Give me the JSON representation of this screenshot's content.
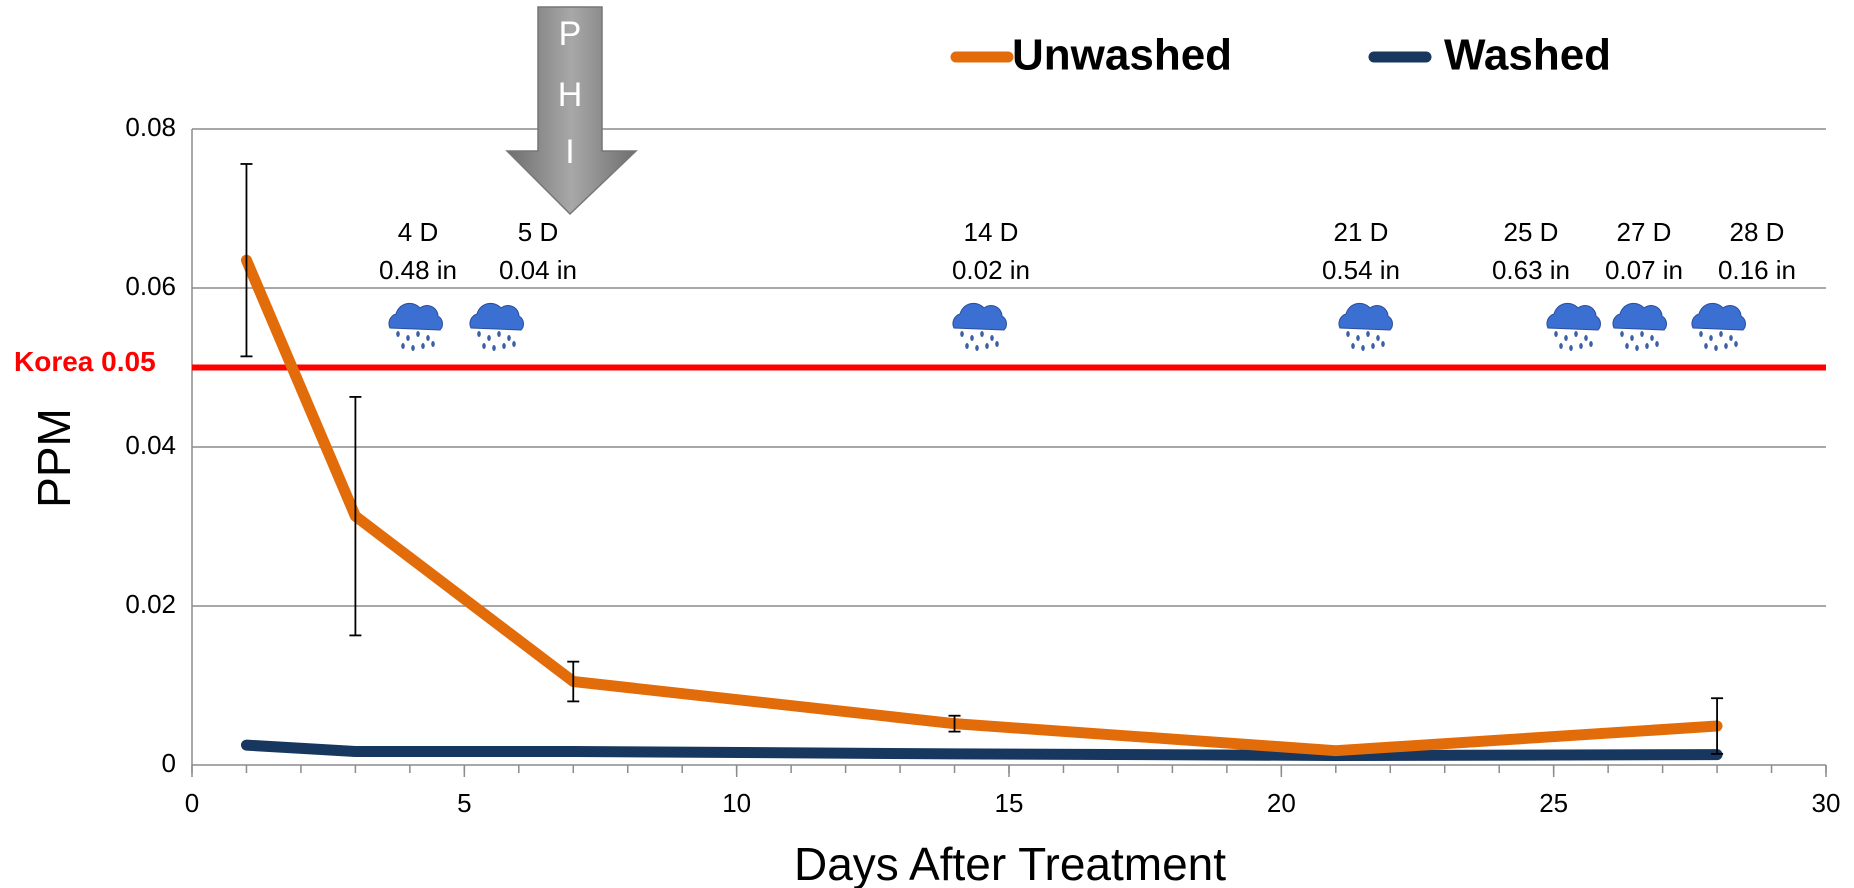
{
  "chart_data": {
    "type": "line",
    "xlabel": "Days After Treatment",
    "ylabel": "PPM",
    "x": [
      1,
      3,
      7,
      14,
      21,
      28
    ],
    "series": [
      {
        "name": "Unwashed",
        "color": "#e36c0a",
        "values": [
          0.0635,
          0.0313,
          0.0105,
          0.0052,
          0.0018,
          0.0049
        ],
        "errors": [
          0.0121,
          0.015,
          0.0025,
          0.001,
          null,
          0.0035
        ]
      },
      {
        "name": "Washed",
        "color": "#17375e",
        "values": [
          0.0025,
          0.0017,
          0.0017,
          0.0014,
          0.0012,
          0.0013
        ]
      }
    ],
    "xlim": [
      0,
      30
    ],
    "xticks": [
      0,
      5,
      10,
      15,
      20,
      25,
      30
    ],
    "ylim": [
      0,
      0.08
    ],
    "yticks": [
      0,
      0.02,
      0.04,
      0.06,
      0.08
    ],
    "grid": true,
    "reference_line": {
      "label": "Korea 0.05",
      "value": 0.05,
      "color": "#ff0000"
    },
    "phi_label": [
      "P",
      "H",
      "I"
    ],
    "rain_events": [
      {
        "day": "4 D",
        "amount": "0.48 in"
      },
      {
        "day": "5 D",
        "amount": "0.04 in"
      },
      {
        "day": "14 D",
        "amount": "0.02 in"
      },
      {
        "day": "21 D",
        "amount": "0.54 in"
      },
      {
        "day": "25 D",
        "amount": "0.63 in"
      },
      {
        "day": "27 D",
        "amount": "0.07 in"
      },
      {
        "day": "28 D",
        "amount": "0.16 in"
      }
    ]
  }
}
